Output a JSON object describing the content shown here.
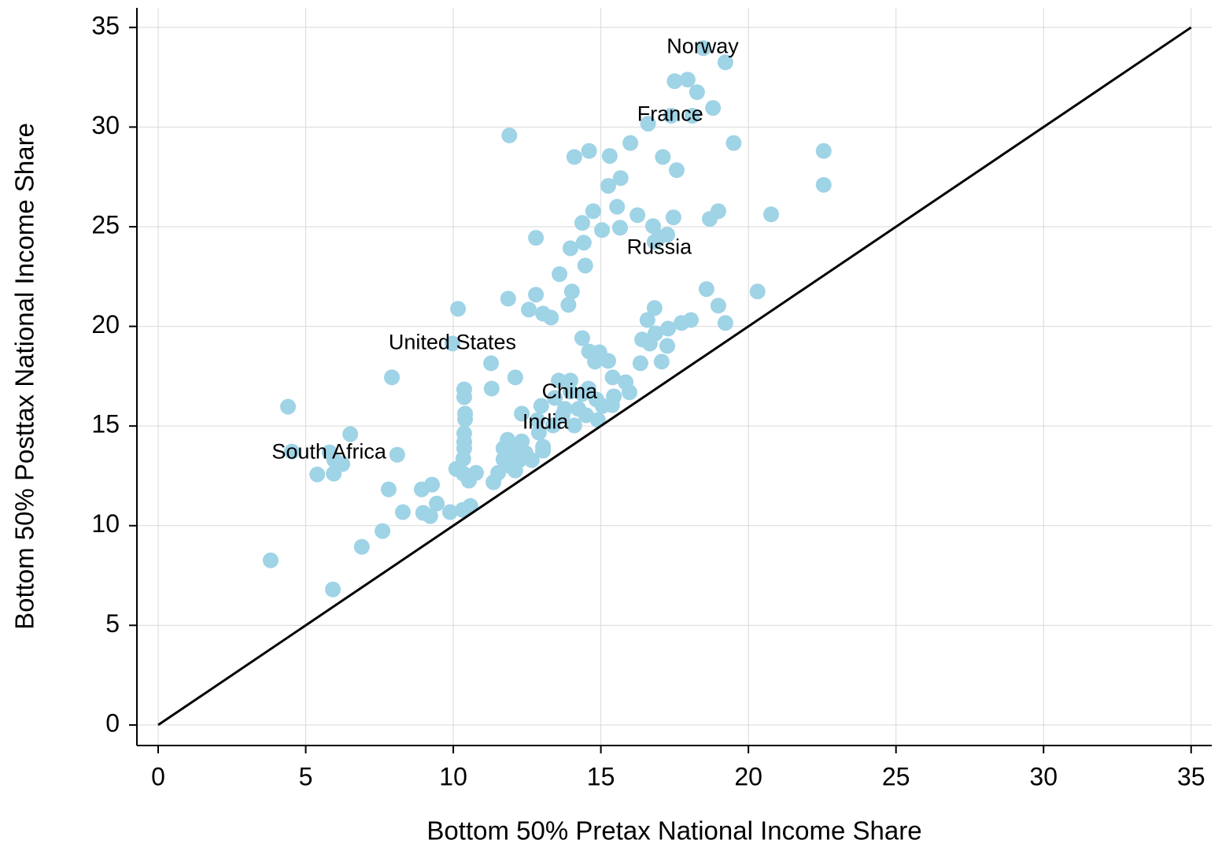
{
  "chart_data": {
    "type": "scatter",
    "xlabel": "Bottom 50% Pretax National Income Share",
    "ylabel": "Bottom 50% Posttax National Income Share",
    "color": "#9fd3e6",
    "xlim": [
      -0.72,
      35.7
    ],
    "ylim": [
      -1.03,
      35.98
    ],
    "xticks": [
      0,
      5,
      10,
      15,
      20,
      25,
      30,
      35
    ],
    "yticks": [
      0,
      5,
      10,
      15,
      20,
      25,
      30,
      35
    ],
    "grid": true,
    "reference_line": {
      "x": [
        0,
        35
      ],
      "y": [
        0,
        35
      ]
    },
    "x": [
      18.47,
      19.22,
      17.5,
      17.94,
      18.26,
      18.8,
      17.38,
      18.1,
      16.6,
      11.9,
      19.5,
      16.0,
      14.6,
      22.55,
      14.1,
      15.3,
      17.1,
      17.57,
      15.67,
      15.25,
      22.55,
      15.55,
      14.74,
      16.24,
      18.98,
      20.77,
      18.69,
      17.46,
      14.37,
      16.77,
      15.65,
      15.04,
      16.98,
      17.25,
      12.8,
      14.42,
      16.82,
      13.97,
      14.47,
      13.6,
      18.58,
      20.31,
      14.02,
      12.8,
      11.86,
      13.9,
      18.98,
      16.82,
      10.16,
      12.56,
      13.04,
      13.31,
      16.58,
      18.05,
      17.73,
      19.22,
      17.28,
      16.85,
      14.37,
      16.4,
      16.66,
      17.25,
      9.97,
      14.6,
      14.95,
      15.25,
      14.8,
      17.06,
      16.34,
      11.28,
      7.92,
      12.1,
      15.4,
      13.57,
      13.97,
      15.84,
      10.37,
      11.3,
      14.58,
      13.97,
      14.37,
      15.97,
      15.44,
      10.37,
      13.44,
      14.85,
      15.06,
      12.98,
      4.4,
      15.38,
      13.78,
      14.24,
      12.32,
      10.4,
      13.7,
      14.5,
      12.85,
      14.9,
      10.4,
      14.1,
      13.38,
      10.37,
      6.51,
      12.9,
      11.84,
      12.32,
      10.37,
      10.37,
      11.7,
      13.04,
      12.02,
      4.53,
      5.81,
      8.1,
      12.45,
      13.04,
      5.97,
      6.24,
      10.34,
      11.7,
      12.24,
      12.66,
      11.95,
      10.1,
      11.52,
      12.1,
      10.77,
      10.34,
      5.39,
      5.95,
      10.53,
      11.36,
      9.28,
      7.81,
      8.93,
      9.44,
      10.58,
      10.32,
      8.29,
      9.89,
      8.98,
      9.22,
      7.6,
      6.9,
      3.81,
      5.92
    ],
    "values": [
      33.96,
      33.25,
      32.3,
      32.38,
      31.75,
      30.96,
      30.57,
      30.57,
      30.17,
      29.58,
      29.2,
      29.2,
      28.8,
      28.8,
      28.5,
      28.55,
      28.5,
      27.84,
      27.44,
      27.05,
      27.1,
      26.0,
      25.78,
      25.58,
      25.78,
      25.62,
      25.39,
      25.47,
      25.19,
      25.03,
      24.95,
      24.83,
      24.48,
      24.6,
      24.44,
      24.2,
      24.24,
      23.92,
      23.05,
      22.62,
      21.87,
      21.75,
      21.75,
      21.59,
      21.39,
      21.08,
      21.04,
      20.92,
      20.88,
      20.84,
      20.64,
      20.44,
      20.32,
      20.32,
      20.17,
      20.17,
      19.89,
      19.65,
      19.41,
      19.34,
      19.14,
      19.02,
      19.14,
      18.74,
      18.7,
      18.27,
      18.23,
      18.23,
      18.15,
      18.15,
      17.44,
      17.44,
      17.44,
      17.28,
      17.28,
      17.2,
      16.84,
      16.88,
      16.88,
      16.73,
      16.61,
      16.69,
      16.49,
      16.45,
      16.41,
      16.33,
      16.01,
      16.01,
      15.97,
      16.05,
      15.86,
      15.86,
      15.62,
      15.62,
      15.54,
      15.54,
      15.3,
      15.3,
      15.34,
      15.03,
      15.03,
      14.63,
      14.59,
      14.67,
      14.31,
      14.23,
      14.2,
      13.88,
      13.88,
      13.96,
      13.68,
      13.72,
      13.68,
      13.56,
      13.64,
      13.76,
      13.29,
      13.09,
      13.36,
      13.33,
      13.29,
      13.29,
      12.97,
      12.85,
      12.65,
      12.77,
      12.65,
      12.61,
      12.57,
      12.61,
      12.26,
      12.18,
      12.06,
      11.82,
      11.82,
      11.11,
      10.99,
      10.79,
      10.68,
      10.68,
      10.64,
      10.48,
      9.73,
      8.94,
      8.26,
      6.8
    ],
    "annotations": [
      {
        "text": "Norway",
        "x": 18.45,
        "y": 34.0
      },
      {
        "text": "France",
        "x": 17.35,
        "y": 30.6
      },
      {
        "text": "Russia",
        "x": 16.98,
        "y": 23.91
      },
      {
        "text": "United States",
        "x": 9.97,
        "y": 19.14
      },
      {
        "text": "China",
        "x": 13.94,
        "y": 16.68
      },
      {
        "text": "India",
        "x": 13.12,
        "y": 15.14
      },
      {
        "text": "South Africa",
        "x": 5.79,
        "y": 13.64
      }
    ]
  }
}
